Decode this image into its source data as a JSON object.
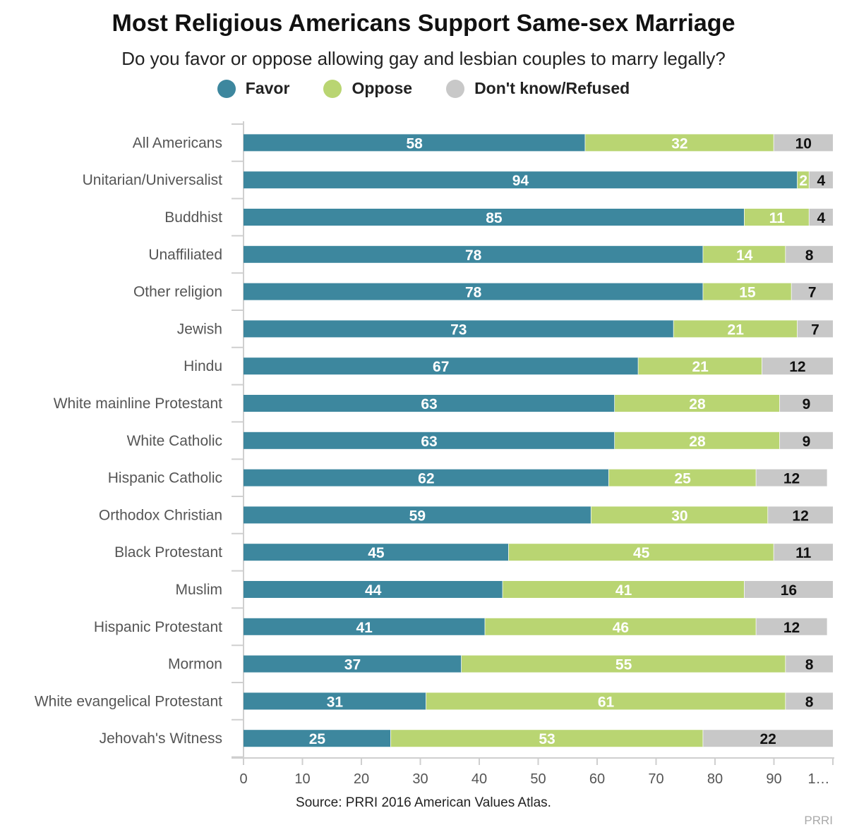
{
  "chart_data": {
    "type": "bar",
    "orientation": "horizontal",
    "stacked": true,
    "title": "Most Religious Americans Support Same-sex Marriage",
    "subtitle": "Do you favor or oppose allowing gay and lesbian couples to marry legally?",
    "categories": [
      "All Americans",
      "Unitarian/Universalist",
      "Buddhist",
      "Unaffiliated",
      "Other religion",
      "Jewish",
      "Hindu",
      "White mainline Protestant",
      "White Catholic",
      "Hispanic Catholic",
      "Orthodox Christian",
      "Black Protestant",
      "Muslim",
      "Hispanic Protestant",
      "Mormon",
      "White evangelical Protestant",
      "Jehovah's Witness"
    ],
    "series": [
      {
        "name": "Favor",
        "color": "#3d879e",
        "values": [
          58,
          94,
          85,
          78,
          78,
          73,
          67,
          63,
          63,
          62,
          59,
          45,
          44,
          41,
          37,
          31,
          25
        ]
      },
      {
        "name": "Oppose",
        "color": "#b9d572",
        "values": [
          32,
          2,
          11,
          14,
          15,
          21,
          21,
          28,
          28,
          25,
          30,
          45,
          41,
          46,
          55,
          61,
          53
        ]
      },
      {
        "name": "Don't know/Refused",
        "color": "#c8c8c8",
        "values": [
          10,
          4,
          4,
          8,
          7,
          7,
          12,
          9,
          9,
          12,
          12,
          11,
          16,
          12,
          8,
          8,
          22
        ]
      }
    ],
    "xlim": [
      0,
      100
    ],
    "xticks": [
      "0",
      "10",
      "20",
      "30",
      "40",
      "50",
      "60",
      "70",
      "80",
      "90",
      "1…"
    ],
    "legend_position": "top-center"
  },
  "source": "Source: PRRI 2016 American Values Atlas.",
  "brand": "PRRI"
}
